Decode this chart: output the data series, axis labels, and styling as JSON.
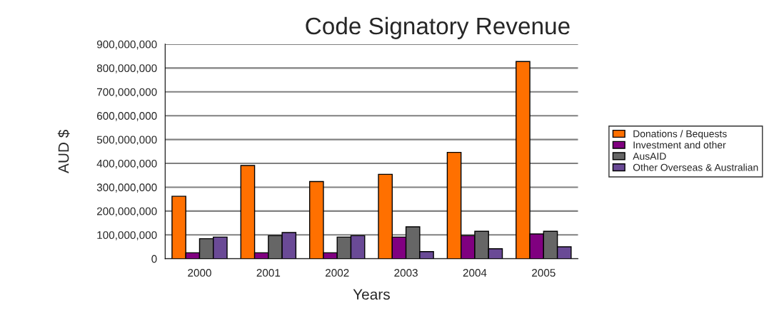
{
  "chart_data": {
    "type": "bar",
    "title": "Code Signatory Revenue",
    "xlabel": "Years",
    "ylabel": "AUD $",
    "categories": [
      "2000",
      "2001",
      "2002",
      "2003",
      "2004",
      "2005"
    ],
    "series": [
      {
        "name": "Donations / Bequests",
        "color": "#ff7000",
        "values": [
          262000000,
          391000000,
          324000000,
          354000000,
          446000000,
          827000000
        ]
      },
      {
        "name": "Investment and other",
        "color": "#800080",
        "values": [
          25000000,
          25000000,
          25000000,
          91000000,
          97000000,
          104000000
        ]
      },
      {
        "name": "AusAID",
        "color": "#666666",
        "values": [
          84000000,
          97000000,
          91000000,
          134000000,
          115000000,
          115000000
        ]
      },
      {
        "name": "Other Overseas & Australian",
        "color": "#6a4a96",
        "values": [
          91000000,
          110000000,
          97000000,
          30000000,
          42000000,
          50000000
        ]
      }
    ],
    "ylim": [
      0,
      900000000
    ],
    "yticks": [
      {
        "value": 0,
        "label": "0"
      },
      {
        "value": 100000000,
        "label": "100,000,000"
      },
      {
        "value": 200000000,
        "label": "200,000,000"
      },
      {
        "value": 300000000,
        "label": "300,000,000"
      },
      {
        "value": 400000000,
        "label": "400,000,000"
      },
      {
        "value": 500000000,
        "label": "500,000,000"
      },
      {
        "value": 600000000,
        "label": "600,000,000"
      },
      {
        "value": 700000000,
        "label": "700,000,000"
      },
      {
        "value": 800000000,
        "label": "800,000,000"
      },
      {
        "value": 900000000,
        "label": "900,000,000"
      }
    ],
    "grid": "y",
    "legend": "right"
  }
}
